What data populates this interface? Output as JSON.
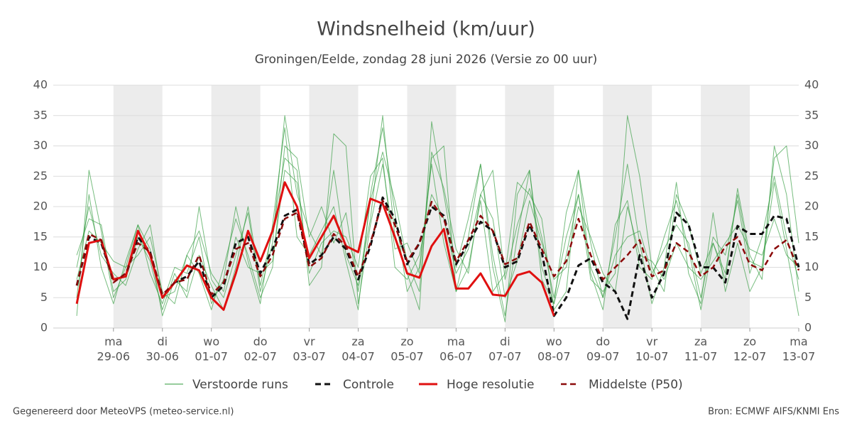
{
  "chart_data": {
    "type": "line",
    "title": "Windsnelheid (km/uur)",
    "subtitle": "Groningen/Eelde, zondag 28 juni 2026 (Versie zo 00 uur)",
    "footer_left": "Gegenereerd door MeteoVPS (meteo-service.nl)",
    "footer_right": "Bron: ECMWF AIFS/KNMI Ens",
    "xlim": [
      -0.23,
      15
    ],
    "ylim": [
      0,
      40
    ],
    "yticks": [
      0,
      5,
      10,
      15,
      20,
      25,
      30,
      35,
      40
    ],
    "grid": true,
    "xticks": [
      {
        "value": 1,
        "label": [
          "ma",
          "29-06"
        ]
      },
      {
        "value": 2,
        "label": [
          "di",
          "30-06"
        ]
      },
      {
        "value": 3,
        "label": [
          "wo",
          "01-07"
        ]
      },
      {
        "value": 4,
        "label": [
          "do",
          "02-07"
        ]
      },
      {
        "value": 5,
        "label": [
          "vr",
          "03-07"
        ]
      },
      {
        "value": 6,
        "label": [
          "za",
          "04-07"
        ]
      },
      {
        "value": 7,
        "label": [
          "zo",
          "05-07"
        ]
      },
      {
        "value": 8,
        "label": [
          "ma",
          "06-07"
        ]
      },
      {
        "value": 9,
        "label": [
          "di",
          "07-07"
        ]
      },
      {
        "value": 10,
        "label": [
          "wo",
          "08-07"
        ]
      },
      {
        "value": 11,
        "label": [
          "do",
          "09-07"
        ]
      },
      {
        "value": 12,
        "label": [
          "vr",
          "10-07"
        ]
      },
      {
        "value": 13,
        "label": [
          "za",
          "11-07"
        ]
      },
      {
        "value": 14,
        "label": [
          "zo",
          "12-07"
        ]
      },
      {
        "value": 15,
        "label": [
          "ma",
          "13-07"
        ]
      }
    ],
    "x": [
      0.25,
      0.5,
      0.75,
      1,
      1.25,
      1.5,
      1.75,
      2,
      2.25,
      2.5,
      2.75,
      3,
      3.25,
      3.5,
      3.75,
      4,
      4.25,
      4.5,
      4.75,
      5,
      5.25,
      5.5,
      5.75,
      6,
      6.25,
      6.5,
      6.75,
      7,
      7.25,
      7.5,
      7.75,
      8,
      8.25,
      8.5,
      8.75,
      9,
      9.25,
      9.5,
      9.75,
      10,
      10.25,
      10.5,
      10.75,
      11,
      11.25,
      11.5,
      11.75,
      12,
      12.25,
      12.5,
      12.75,
      13,
      13.25,
      13.5,
      13.75,
      14,
      14.25,
      14.5,
      14.75,
      15
    ],
    "ensemble": {
      "name": "Verstoorde runs",
      "color": "#2e9a3a",
      "members": [
        [
          2,
          26,
          16,
          5,
          10,
          17,
          13,
          2,
          8,
          6,
          20,
          8,
          5,
          12,
          19,
          6,
          14,
          35,
          22,
          16,
          12,
          26,
          12,
          7,
          18,
          35,
          15,
          9,
          3,
          34,
          22,
          10,
          18,
          27,
          12,
          2,
          15,
          26,
          8,
          4,
          12,
          22,
          8,
          6,
          9,
          35,
          25,
          10,
          6,
          22,
          17,
          9,
          14,
          8,
          23,
          12,
          8,
          30,
          22,
          6
        ],
        [
          10,
          20,
          12,
          9,
          7,
          13,
          17,
          5,
          6,
          12,
          9,
          3,
          10,
          18,
          12,
          5,
          10,
          30,
          28,
          15,
          20,
          14,
          19,
          6,
          21,
          29,
          21,
          11,
          6,
          29,
          23,
          13,
          9,
          22,
          26,
          8,
          17,
          23,
          15,
          5,
          15,
          22,
          10,
          5,
          12,
          15,
          16,
          9,
          13,
          17,
          14,
          5,
          15,
          12,
          21,
          9,
          15,
          25,
          15,
          8
        ],
        [
          12,
          18,
          17,
          6,
          8,
          15,
          11,
          3,
          9,
          5,
          12,
          7,
          3,
          10,
          20,
          7,
          16,
          28,
          26,
          7,
          10,
          32,
          30,
          4,
          17,
          27,
          13,
          14,
          9,
          28,
          30,
          6,
          10,
          21,
          6,
          9,
          24,
          22,
          18,
          3,
          6,
          26,
          14,
          5,
          15,
          27,
          14,
          4,
          10,
          24,
          9,
          4,
          19,
          6,
          14,
          6,
          10,
          28,
          30,
          14
        ],
        [
          5,
          22,
          10,
          4,
          11,
          17,
          9,
          4,
          10,
          9,
          15,
          4,
          8,
          20,
          11,
          4,
          17,
          33,
          15,
          12,
          16,
          20,
          11,
          3,
          22,
          33,
          19,
          6,
          10,
          27,
          14,
          6,
          15,
          27,
          10,
          1,
          22,
          26,
          10,
          4,
          19,
          26,
          9,
          3,
          17,
          21,
          10,
          8,
          15,
          21,
          13,
          3,
          14,
          9,
          22,
          11,
          10,
          24,
          13,
          2
        ],
        [
          8,
          16,
          14,
          11,
          10,
          12,
          15,
          6,
          4,
          12,
          16,
          9,
          6,
          15,
          10,
          9,
          11,
          26,
          24,
          9,
          14,
          16,
          15,
          10,
          25,
          28,
          10,
          8,
          12,
          22,
          18,
          9,
          13,
          22,
          18,
          5,
          11,
          21,
          14,
          8,
          10,
          20,
          15,
          9,
          6,
          20,
          12,
          11,
          8,
          14,
          10,
          8,
          11,
          14,
          17,
          13,
          12,
          18,
          12,
          10
        ]
      ]
    },
    "series": [
      {
        "name": "Controle",
        "color": "#111111",
        "dashed": true,
        "width": 3,
        "values": [
          7,
          15,
          14,
          8,
          8.5,
          15,
          12.5,
          5,
          7.5,
          8.5,
          11,
          5,
          7,
          14,
          15,
          9,
          13,
          18.5,
          19.5,
          10.5,
          12,
          15,
          13,
          8,
          13.5,
          21.5,
          18,
          10.5,
          14,
          20,
          18.5,
          10.5,
          14,
          17.5,
          16,
          10,
          11,
          17,
          12.5,
          2,
          5,
          10.3,
          11.5,
          7.5,
          6,
          1.5,
          12,
          5,
          9,
          19,
          17,
          10,
          10,
          7.5,
          16.8,
          15.5,
          15.5,
          18.5,
          18,
          10
        ]
      },
      {
        "name": "Hoge resolutie",
        "color": "#e01010",
        "dashed": false,
        "width": 3,
        "values": [
          4,
          14,
          14.5,
          8,
          8.5,
          16,
          12,
          5,
          7.5,
          10.3,
          9.5,
          5,
          3,
          9,
          16,
          11,
          16,
          24,
          20,
          11.5,
          15,
          18.5,
          13.5,
          12.5,
          21.3,
          20.5,
          15,
          9,
          8.3,
          13.5,
          16.3,
          6.5,
          6.5,
          9,
          5.5,
          5.3,
          8.7,
          9.3,
          7.5,
          2,
          null,
          null,
          null,
          null,
          null,
          null,
          null,
          null,
          null,
          null,
          null,
          null,
          null,
          null,
          null,
          null,
          null,
          null,
          null,
          null
        ]
      },
      {
        "name": "Middelste (P50)",
        "color": "#8b0a0a",
        "dashed": true,
        "width": 2.5,
        "values": [
          7,
          15.5,
          14.5,
          7.5,
          9,
          14,
          12.5,
          5.5,
          7.5,
          8,
          12,
          5.5,
          7.5,
          13,
          14,
          8.5,
          12,
          18,
          19,
          10,
          11.5,
          15.5,
          13.5,
          8.5,
          14,
          21,
          17,
          11,
          14,
          20.8,
          18,
          11,
          14.5,
          18.5,
          16,
          10.5,
          11.5,
          17.5,
          13,
          8.5,
          11,
          18,
          12,
          8,
          10,
          12,
          14.5,
          8.5,
          9.5,
          14,
          12.5,
          8.5,
          10,
          13.5,
          15,
          10.5,
          9.5,
          13,
          14.5,
          9.5
        ]
      }
    ]
  }
}
